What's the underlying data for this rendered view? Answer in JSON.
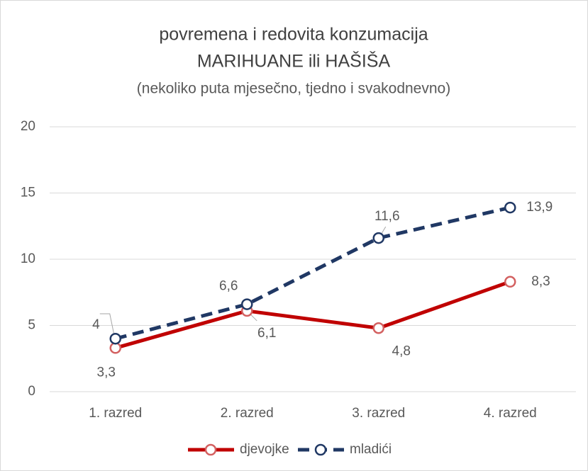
{
  "chart_data": {
    "type": "line",
    "title": [
      "povremena i redovita konzumacija",
      "MARIHUANE ili HAŠIŠA"
    ],
    "subtitle": "(nekoliko puta mjesečno, tjedno i svakodnevno)",
    "categories": [
      "1. razred",
      "2. razred",
      "3. razred",
      "4. razred"
    ],
    "series": [
      {
        "name": "djevojke",
        "color": "#c00000",
        "line_style": "solid",
        "values": [
          3.3,
          6.1,
          4.8,
          8.3
        ],
        "value_labels": [
          "3,3",
          "6,1",
          "4,8",
          "8,3"
        ]
      },
      {
        "name": "mladići",
        "color": "#203864",
        "line_style": "dashed",
        "values": [
          4,
          6.6,
          11.6,
          13.9
        ],
        "value_labels": [
          "4",
          "6,6",
          "11,6",
          "13,9"
        ]
      }
    ],
    "ylim": [
      0,
      20
    ],
    "yticks": [
      0,
      5,
      10,
      15,
      20
    ],
    "grid": true,
    "legend": "bottom"
  }
}
